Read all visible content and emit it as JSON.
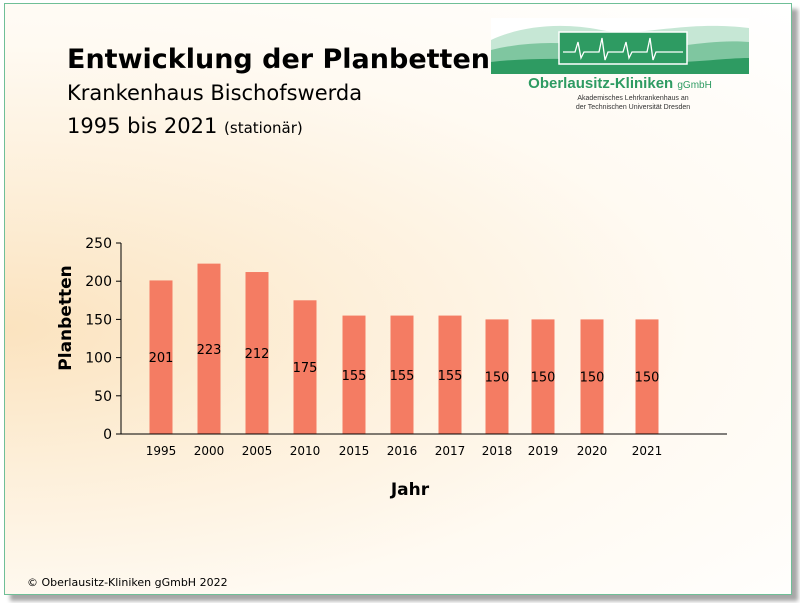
{
  "header": {
    "title": "Entwicklung der Planbetten",
    "subtitle": "Krankenhaus Bischofswerda",
    "period": "1995 bis 2021",
    "period_note": "(stationär)"
  },
  "logo": {
    "name": "Oberlausitz-Kliniken",
    "suffix": "gGmbH",
    "line1": "Akademisches Lehrkrankenhaus an",
    "line2": "der Technischen Universität Dresden",
    "color": "#2e9b62"
  },
  "footer": {
    "copyright": "© Oberlausitz-Kliniken gGmbH 2022"
  },
  "chart_data": {
    "type": "bar",
    "categories": [
      "1995",
      "2000",
      "2005",
      "2010",
      "2015",
      "2016",
      "2017",
      "2018",
      "2019",
      "2020",
      "2021"
    ],
    "values": [
      201,
      223,
      212,
      175,
      155,
      155,
      155,
      150,
      150,
      150,
      150
    ],
    "title": "",
    "xlabel": "Jahr",
    "ylabel": "Planbetten",
    "ylim": [
      0,
      250
    ],
    "yticks": [
      0,
      50,
      100,
      150,
      200,
      250
    ],
    "bar_color": "#f47c63",
    "grid": false,
    "data_labels": true
  }
}
